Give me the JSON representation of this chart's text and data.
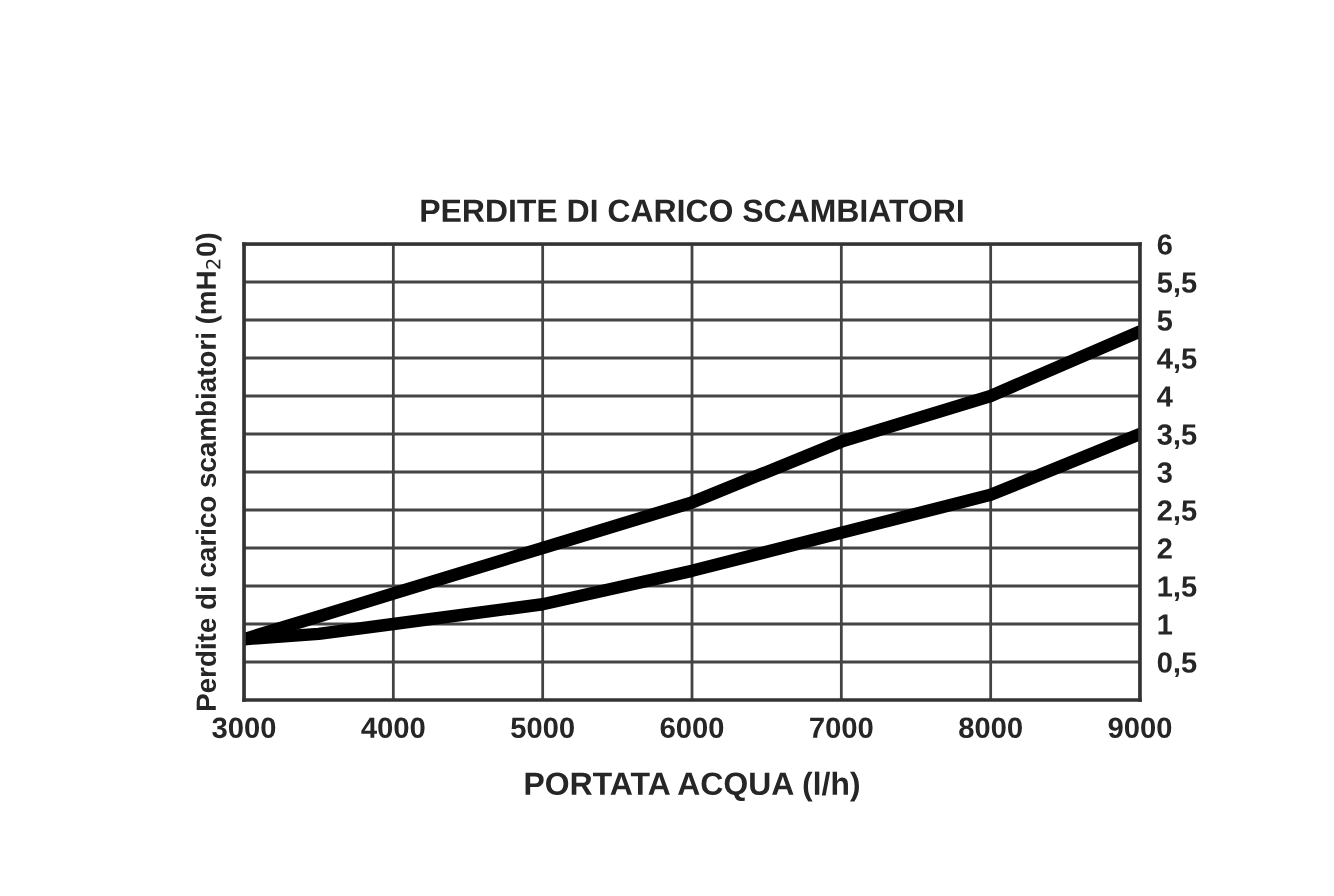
{
  "chart_data": {
    "type": "line",
    "title": "PERDITE DI CARICO SCAMBIATORI",
    "xlabel": "PORTATA ACQUA (l/h)",
    "ylabel": "Perdite di carico scambiatori (mH$_{2}$0)",
    "x": [
      3000,
      3500,
      4000,
      5000,
      6000,
      7000,
      8000,
      9000
    ],
    "series": [
      {
        "color": "#000000",
        "values": [
          0.8,
          1.1,
          1.4,
          2.0,
          2.6,
          3.4,
          4.0,
          4.85
        ]
      },
      {
        "color": "#000000",
        "values": [
          0.8,
          0.87,
          1.0,
          1.26,
          1.7,
          2.2,
          2.7,
          3.5
        ]
      }
    ],
    "xlim": [
      3000,
      9000
    ],
    "xticks": [
      3000,
      4000,
      5000,
      6000,
      7000,
      8000,
      9000
    ],
    "ylim": [
      0,
      6
    ],
    "yticks": [
      {
        "value": 0.5,
        "label": "0,5"
      },
      1,
      {
        "value": 1.5,
        "label": "1,5"
      },
      2,
      {
        "value": 2.5,
        "label": "2,5"
      },
      3,
      {
        "value": 3.5,
        "label": "3,5"
      },
      4,
      {
        "value": 4.5,
        "label": "4,5"
      },
      5,
      {
        "value": 5.5,
        "label": "5,5"
      },
      6
    ],
    "grid": true,
    "line_style": "solid",
    "marker": "none"
  }
}
